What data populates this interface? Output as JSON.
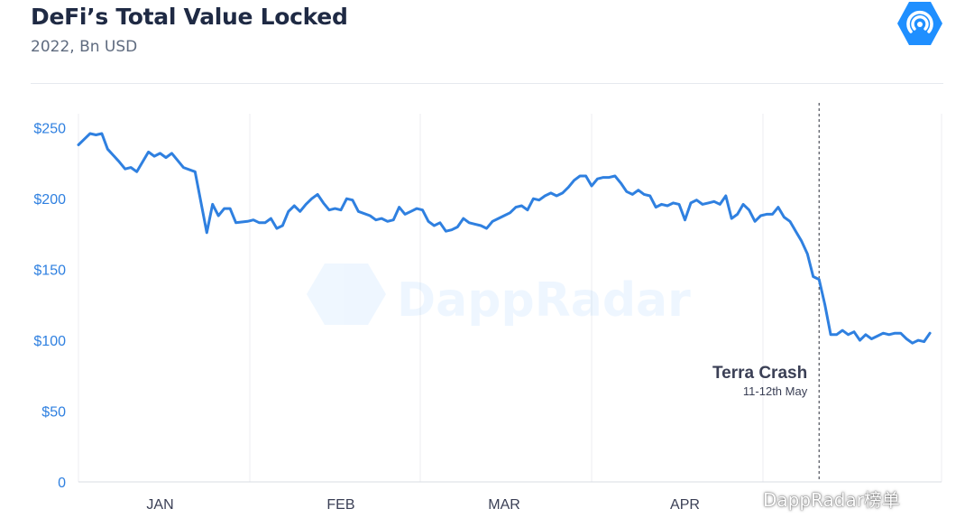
{
  "header": {
    "title": "DeFi’s Total Value Locked",
    "subtitle": "2022, Bn USD",
    "logo_icon": "dappradar-logo-icon"
  },
  "watermark": {
    "center_text": "DappRadar",
    "footer_text": "DappRadar榜单",
    "footer_icon": "wechat-icon"
  },
  "colors": {
    "line": "#2f80e0",
    "accent": "#1f8fff",
    "title": "#1f2a44",
    "axis_label": "#2f80e0"
  },
  "chart_data": {
    "type": "line",
    "title": "DeFi’s Total Value Locked",
    "subtitle": "2022, Bn USD",
    "ylim": [
      0,
      260
    ],
    "yticks": [
      {
        "value": 0,
        "label": "0"
      },
      {
        "value": 50,
        "label": "$50"
      },
      {
        "value": 100,
        "label": "$100"
      },
      {
        "value": 150,
        "label": "$150"
      },
      {
        "value": 200,
        "label": "$200"
      },
      {
        "value": 250,
        "label": "$250"
      }
    ],
    "xlim": [
      "2022-01-01",
      "2022-05-29"
    ],
    "xticks": [
      {
        "date": "2022-01-15",
        "label": "JAN"
      },
      {
        "date": "2022-02-15",
        "label": "FEB"
      },
      {
        "date": "2022-03-15",
        "label": "MAR"
      },
      {
        "date": "2022-04-15",
        "label": "APR"
      }
    ],
    "grid": "vertical",
    "series": [
      {
        "points": [
          [
            "2022-01-01",
            238
          ],
          [
            "2022-01-02",
            242
          ],
          [
            "2022-01-03",
            246
          ],
          [
            "2022-01-04",
            245
          ],
          [
            "2022-01-05",
            246
          ],
          [
            "2022-01-06",
            235
          ],
          [
            "2022-01-08",
            226
          ],
          [
            "2022-01-09",
            221
          ],
          [
            "2022-01-10",
            222
          ],
          [
            "2022-01-11",
            219
          ],
          [
            "2022-01-13",
            233
          ],
          [
            "2022-01-14",
            230
          ],
          [
            "2022-01-15",
            232
          ],
          [
            "2022-01-16",
            229
          ],
          [
            "2022-01-17",
            232
          ],
          [
            "2022-01-19",
            222
          ],
          [
            "2022-01-21",
            219
          ],
          [
            "2022-01-23",
            176
          ],
          [
            "2022-01-24",
            196
          ],
          [
            "2022-01-25",
            188
          ],
          [
            "2022-01-26",
            193
          ],
          [
            "2022-01-27",
            193
          ],
          [
            "2022-01-28",
            183
          ],
          [
            "2022-01-30",
            184
          ],
          [
            "2022-01-31",
            185
          ],
          [
            "2022-02-01",
            183
          ],
          [
            "2022-02-02",
            183
          ],
          [
            "2022-02-03",
            186
          ],
          [
            "2022-02-04",
            179
          ],
          [
            "2022-02-05",
            181
          ],
          [
            "2022-02-06",
            191
          ],
          [
            "2022-02-07",
            195
          ],
          [
            "2022-02-08",
            191
          ],
          [
            "2022-02-09",
            196
          ],
          [
            "2022-02-10",
            200
          ],
          [
            "2022-02-11",
            203
          ],
          [
            "2022-02-12",
            197
          ],
          [
            "2022-02-13",
            192
          ],
          [
            "2022-02-14",
            193
          ],
          [
            "2022-02-15",
            192
          ],
          [
            "2022-02-16",
            200
          ],
          [
            "2022-02-17",
            199
          ],
          [
            "2022-02-18",
            191
          ],
          [
            "2022-02-20",
            188
          ],
          [
            "2022-02-21",
            185
          ],
          [
            "2022-02-22",
            186
          ],
          [
            "2022-02-23",
            184
          ],
          [
            "2022-02-24",
            185
          ],
          [
            "2022-02-25",
            194
          ],
          [
            "2022-02-26",
            189
          ],
          [
            "2022-02-27",
            191
          ],
          [
            "2022-02-28",
            193
          ],
          [
            "2022-03-01",
            192
          ],
          [
            "2022-03-02",
            184
          ],
          [
            "2022-03-03",
            181
          ],
          [
            "2022-03-04",
            183
          ],
          [
            "2022-03-05",
            177
          ],
          [
            "2022-03-06",
            178
          ],
          [
            "2022-03-07",
            180
          ],
          [
            "2022-03-08",
            186
          ],
          [
            "2022-03-09",
            183
          ],
          [
            "2022-03-10",
            182
          ],
          [
            "2022-03-11",
            181
          ],
          [
            "2022-03-12",
            179
          ],
          [
            "2022-03-13",
            184
          ],
          [
            "2022-03-14",
            186
          ],
          [
            "2022-03-15",
            188
          ],
          [
            "2022-03-16",
            190
          ],
          [
            "2022-03-17",
            194
          ],
          [
            "2022-03-18",
            195
          ],
          [
            "2022-03-19",
            192
          ],
          [
            "2022-03-20",
            200
          ],
          [
            "2022-03-21",
            199
          ],
          [
            "2022-03-22",
            202
          ],
          [
            "2022-03-23",
            204
          ],
          [
            "2022-03-24",
            202
          ],
          [
            "2022-03-25",
            204
          ],
          [
            "2022-03-26",
            208
          ],
          [
            "2022-03-27",
            213
          ],
          [
            "2022-03-28",
            216
          ],
          [
            "2022-03-29",
            216
          ],
          [
            "2022-03-30",
            209
          ],
          [
            "2022-03-31",
            214
          ],
          [
            "2022-04-01",
            215
          ],
          [
            "2022-04-02",
            215
          ],
          [
            "2022-04-03",
            216
          ],
          [
            "2022-04-04",
            211
          ],
          [
            "2022-04-05",
            205
          ],
          [
            "2022-04-06",
            203
          ],
          [
            "2022-04-07",
            206
          ],
          [
            "2022-04-08",
            203
          ],
          [
            "2022-04-09",
            202
          ],
          [
            "2022-04-10",
            194
          ],
          [
            "2022-04-11",
            196
          ],
          [
            "2022-04-12",
            195
          ],
          [
            "2022-04-13",
            197
          ],
          [
            "2022-04-14",
            196
          ],
          [
            "2022-04-15",
            185
          ],
          [
            "2022-04-16",
            197
          ],
          [
            "2022-04-17",
            199
          ],
          [
            "2022-04-18",
            196
          ],
          [
            "2022-04-19",
            197
          ],
          [
            "2022-04-20",
            198
          ],
          [
            "2022-04-21",
            196
          ],
          [
            "2022-04-22",
            202
          ],
          [
            "2022-04-23",
            186
          ],
          [
            "2022-04-24",
            189
          ],
          [
            "2022-04-25",
            196
          ],
          [
            "2022-04-26",
            192
          ],
          [
            "2022-04-27",
            184
          ],
          [
            "2022-04-28",
            188
          ],
          [
            "2022-04-29",
            189
          ],
          [
            "2022-04-30",
            189
          ],
          [
            "2022-05-01",
            194
          ],
          [
            "2022-05-02",
            187
          ],
          [
            "2022-05-03",
            184
          ],
          [
            "2022-05-04",
            177
          ],
          [
            "2022-05-05",
            170
          ],
          [
            "2022-05-06",
            161
          ],
          [
            "2022-05-07",
            145
          ],
          [
            "2022-05-08",
            143
          ],
          [
            "2022-05-09",
            125
          ],
          [
            "2022-05-10",
            104
          ],
          [
            "2022-05-11",
            104
          ],
          [
            "2022-05-12",
            107
          ],
          [
            "2022-05-13",
            104
          ],
          [
            "2022-05-14",
            106
          ],
          [
            "2022-05-15",
            100
          ],
          [
            "2022-05-16",
            104
          ],
          [
            "2022-05-17",
            101
          ],
          [
            "2022-05-18",
            103
          ],
          [
            "2022-05-19",
            105
          ],
          [
            "2022-05-20",
            104
          ],
          [
            "2022-05-21",
            105
          ],
          [
            "2022-05-22",
            105
          ],
          [
            "2022-05-23",
            101
          ],
          [
            "2022-05-24",
            98
          ],
          [
            "2022-05-25",
            100
          ],
          [
            "2022-05-26",
            99
          ],
          [
            "2022-05-27",
            105
          ]
        ]
      }
    ],
    "annotations": [
      {
        "date": "2022-05-08",
        "label": "Terra Crash",
        "sublabel": "11-12th May",
        "style": "dashed-vertical-line"
      }
    ]
  }
}
